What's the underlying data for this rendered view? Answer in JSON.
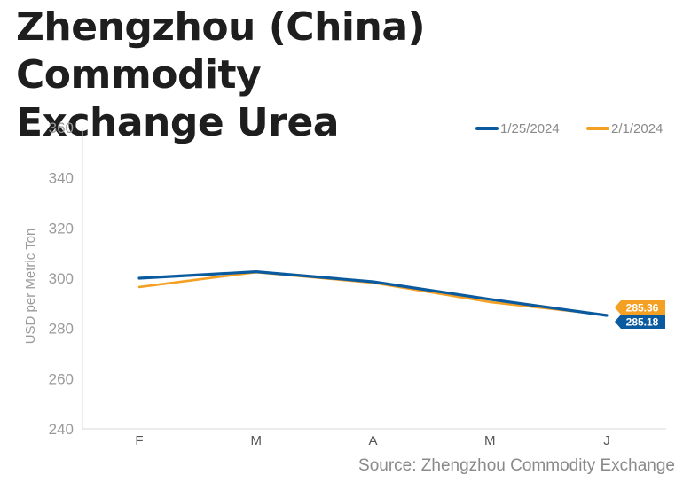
{
  "title_line1": "Zhengzhou (China) Commodity",
  "title_line2": "Exchange Urea",
  "source": "Source: Zhengzhou Commodity Exchange",
  "chart_data": {
    "type": "line",
    "title": "Zhengzhou (China) Commodity Exchange Urea",
    "xlabel": "",
    "ylabel": "USD per Metric Ton",
    "categories": [
      "F",
      "M",
      "A",
      "M",
      "J"
    ],
    "ylim": [
      240,
      360
    ],
    "yticks": [
      240,
      260,
      280,
      300,
      320,
      340,
      360
    ],
    "grid": false,
    "legend_position": "top-right",
    "series": [
      {
        "name": "1/25/2024",
        "color": "#0a5aa0",
        "values": [
          300.0,
          302.6,
          298.6,
          291.6,
          285.18
        ],
        "end_label": "285.18"
      },
      {
        "name": "2/1/2024",
        "color": "#f4a022",
        "values": [
          296.5,
          302.4,
          298.2,
          290.5,
          285.36
        ],
        "end_label": "285.36"
      }
    ]
  }
}
